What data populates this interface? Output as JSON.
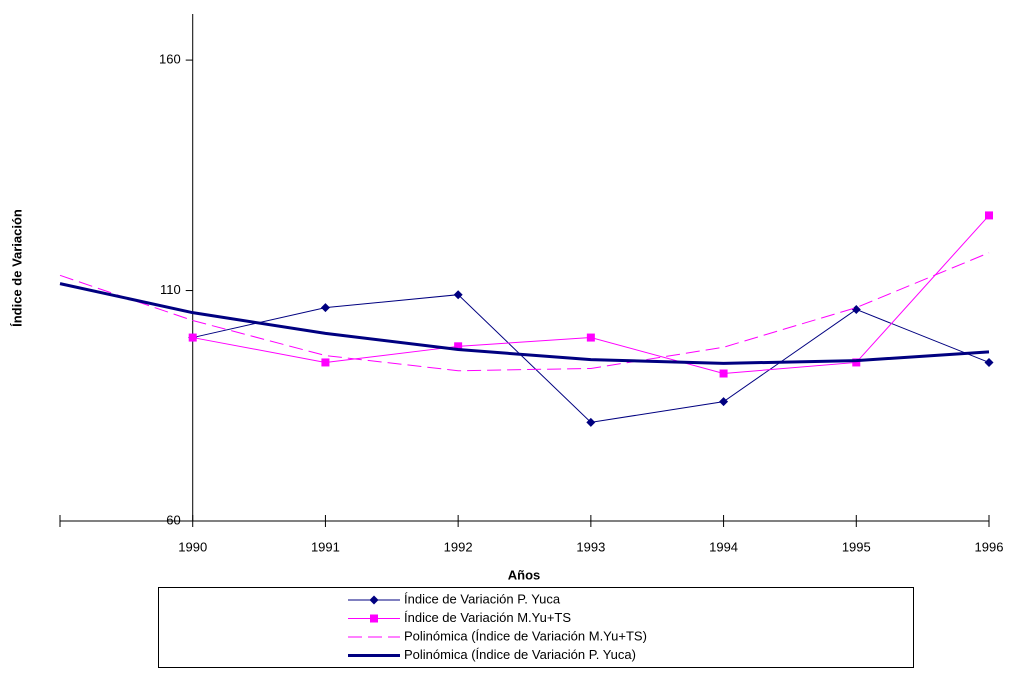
{
  "chart_data": {
    "type": "line",
    "y_label": "Índice de Variación",
    "x_label": "Años",
    "categories": [
      null,
      "1990",
      "1991",
      "1992",
      "1993",
      "1994",
      "1995",
      "1996"
    ],
    "ylim": [
      60,
      170
    ],
    "yticks": [
      60,
      110,
      160
    ],
    "series": [
      {
        "name": "Índice de Variación P. Yuca",
        "color": "#000080",
        "marker": "diamond",
        "dash": "solid",
        "width": 1,
        "values": [
          null,
          99.8,
          106.3,
          109.1,
          81.4,
          85.9,
          105.9,
          94.4
        ]
      },
      {
        "name": "Índice de Variación M.Yu+TS",
        "color": "#ff00ff",
        "marker": "square",
        "dash": "solid",
        "width": 1,
        "values": [
          null,
          99.8,
          94.4,
          97.9,
          99.8,
          92.0,
          94.4,
          126.3
        ]
      },
      {
        "name": "Polinómica (Índice de Variación M.Yu+TS)",
        "color": "#ff00ff",
        "marker": "none",
        "dash": "dashed",
        "width": 1,
        "values": [
          113.3,
          103.5,
          95.9,
          92.6,
          93.1,
          97.7,
          106.3,
          118.2
        ]
      },
      {
        "name": "Polinómica (Índice de Variación P. Yuca)",
        "color": "#000080",
        "marker": "none",
        "dash": "solid",
        "width": 3,
        "values": [
          111.5,
          105.2,
          100.7,
          97.2,
          95.0,
          94.2,
          94.8,
          96.7
        ]
      }
    ]
  }
}
